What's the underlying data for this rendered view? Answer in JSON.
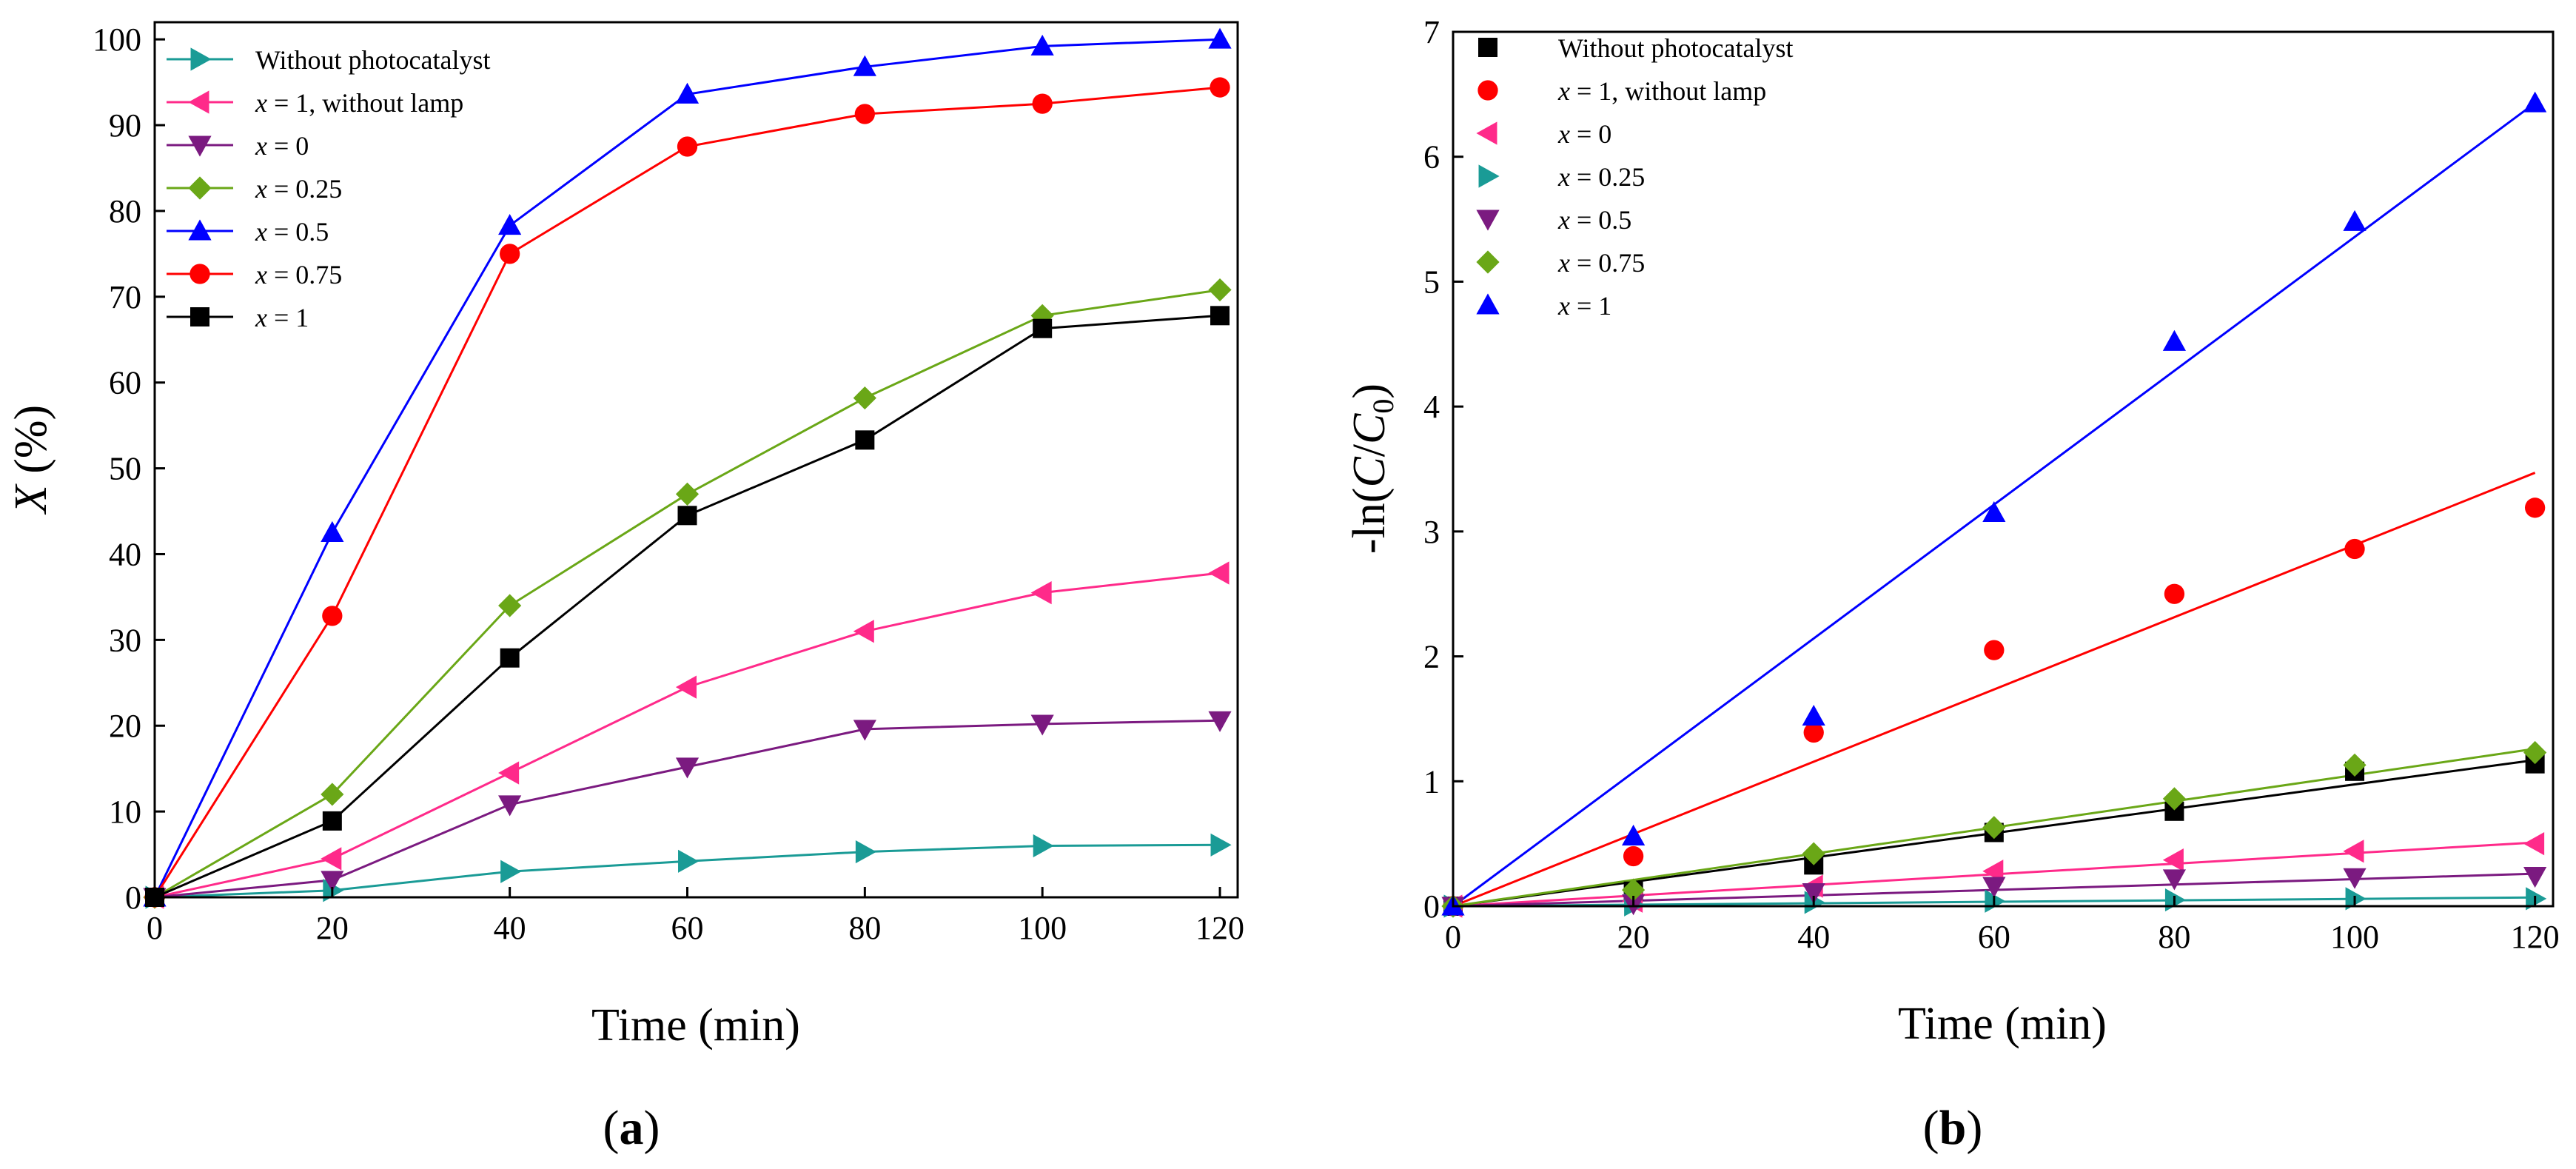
{
  "colors": {
    "teal": "#1a9b96",
    "pink": "#ff2a8a",
    "purple": "#7b1a80",
    "green": "#6aa717",
    "blue": "#0000ff",
    "red": "#ff0000",
    "black": "#000000"
  },
  "chart_data": [
    {
      "type": "line",
      "panel": "a",
      "panel_label": "a",
      "xlabel": "Time (min)",
      "ylabel": "X (%)",
      "xlim": [
        0,
        122
      ],
      "ylim": [
        0,
        102
      ],
      "xticks": [
        0,
        20,
        40,
        60,
        80,
        100,
        120
      ],
      "yticks": [
        0,
        10,
        20,
        30,
        40,
        50,
        60,
        70,
        80,
        90,
        100
      ],
      "x": [
        0,
        20,
        40,
        60,
        80,
        100,
        120
      ],
      "legend_position": "top-left",
      "series": [
        {
          "name": "Without photocatalyst",
          "var": "",
          "rest": "",
          "marker": "triangle-right",
          "color": "#1a9b96",
          "values": [
            0,
            0.8,
            3.0,
            4.2,
            5.3,
            6.0,
            6.1
          ]
        },
        {
          "name": "x = 1, without lamp",
          "var": "x",
          "rest": " = 1, without lamp",
          "marker": "triangle-left",
          "color": "#ff2a8a",
          "values": [
            0,
            4.5,
            14.5,
            24.5,
            31.0,
            35.5,
            37.8
          ]
        },
        {
          "name": "x = 0",
          "var": "x",
          "rest": " = 0",
          "marker": "triangle-down",
          "color": "#7b1a80",
          "values": [
            0,
            2.0,
            10.8,
            15.2,
            19.6,
            20.2,
            20.6
          ]
        },
        {
          "name": "x = 0.25",
          "var": "x",
          "rest": " = 0.25",
          "marker": "diamond",
          "color": "#6aa717",
          "values": [
            0,
            12.0,
            34.0,
            47.0,
            58.2,
            67.8,
            70.8
          ]
        },
        {
          "name": "x = 0.5",
          "var": "x",
          "rest": " = 0.5",
          "marker": "triangle-up",
          "color": "#0000ff",
          "values": [
            0,
            42.5,
            78.3,
            93.6,
            96.8,
            99.2,
            100.0
          ]
        },
        {
          "name": "x = 0.75",
          "var": "x",
          "rest": " = 0.75",
          "marker": "circle",
          "color": "#ff0000",
          "values": [
            0,
            32.8,
            75.0,
            87.5,
            91.3,
            92.5,
            94.4
          ]
        },
        {
          "name": "x = 1",
          "var": "x",
          "rest": " = 1",
          "marker": "square",
          "color": "#000000",
          "values": [
            0,
            8.9,
            27.9,
            44.5,
            53.3,
            66.3,
            67.8
          ]
        }
      ]
    },
    {
      "type": "scatter",
      "panel": "b",
      "panel_label": "b",
      "xlabel": "Time (min)",
      "ylabel": "-ln(C/C0)",
      "ylabel_parts": {
        "pre": "-ln(",
        "c": "C",
        "slash": "/",
        "c0": "C",
        "sub": "0",
        "post": ")"
      },
      "xlim": [
        0,
        122
      ],
      "ylim": [
        0,
        7
      ],
      "xticks": [
        0,
        20,
        40,
        60,
        80,
        100,
        120
      ],
      "yticks": [
        0,
        1,
        2,
        3,
        4,
        5,
        6,
        7
      ],
      "x": [
        0,
        20,
        40,
        60,
        80,
        100,
        120
      ],
      "legend_position": "top-left",
      "series": [
        {
          "name": "Without photocatalyst",
          "var": "",
          "rest": "",
          "marker": "square",
          "color": "#000000",
          "values": [
            0,
            0.12,
            0.33,
            0.59,
            0.76,
            1.08,
            1.14
          ],
          "fit_end": 1.17
        },
        {
          "name": "x = 1, without lamp",
          "var": "x",
          "rest": " = 1, without lamp",
          "marker": "circle",
          "color": "#ff0000",
          "values": [
            0,
            0.4,
            1.39,
            2.05,
            2.5,
            2.86,
            3.19
          ],
          "fit_end": 3.47
        },
        {
          "name": "x = 0",
          "var": "x",
          "rest": " = 0",
          "marker": "triangle-left",
          "color": "#ff2a8a",
          "values": [
            0,
            0.04,
            0.16,
            0.28,
            0.37,
            0.44,
            0.5
          ],
          "fit_end": 0.51
        },
        {
          "name": "x = 0.25",
          "var": "x",
          "rest": " = 0.25",
          "marker": "triangle-right",
          "color": "#1a9b96",
          "values": [
            0,
            0.01,
            0.03,
            0.04,
            0.05,
            0.06,
            0.06
          ],
          "fit_end": 0.07
        },
        {
          "name": "x = 0.5",
          "var": "x",
          "rest": " = 0.5",
          "marker": "triangle-down",
          "color": "#7b1a80",
          "values": [
            0,
            0.02,
            0.11,
            0.16,
            0.22,
            0.23,
            0.24
          ],
          "fit_end": 0.26
        },
        {
          "name": "x = 0.75",
          "var": "x",
          "rest": " = 0.75",
          "marker": "diamond",
          "color": "#6aa717",
          "values": [
            0,
            0.13,
            0.42,
            0.63,
            0.86,
            1.13,
            1.23
          ],
          "fit_end": 1.26
        },
        {
          "name": "x = 1",
          "var": "x",
          "rest": " = 1",
          "marker": "triangle-up",
          "color": "#0000ff",
          "values": [
            0,
            0.56,
            1.52,
            3.15,
            4.52,
            5.48,
            6.43
          ],
          "fit_end": 6.43
        }
      ]
    }
  ]
}
